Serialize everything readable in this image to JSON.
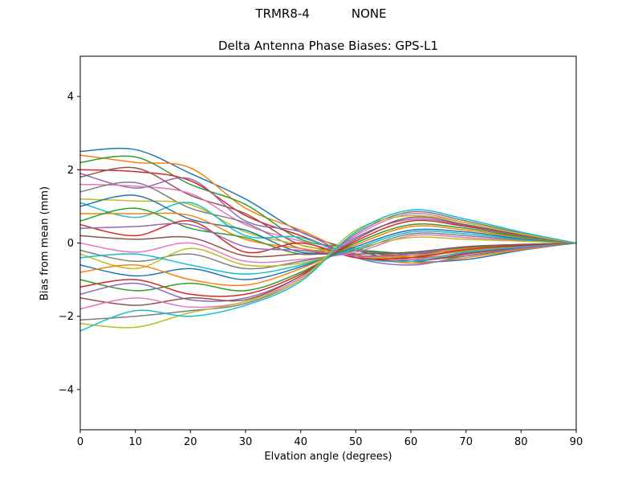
{
  "header": {
    "suptitle_left": "TRMR8-4",
    "suptitle_right": "NONE",
    "title": "Delta Antenna Phase Biases: GPS-L1"
  },
  "chart_data": {
    "type": "line",
    "title": "Delta Antenna Phase Biases: GPS-L1",
    "suptitle": "TRMR8-4         NONE",
    "xlabel": "Elvation angle (degrees)",
    "ylabel": "Bias from mean (mm)",
    "xlim": [
      0,
      90
    ],
    "ylim": [
      -5.1,
      5.1
    ],
    "xticks": [
      0,
      10,
      20,
      30,
      40,
      50,
      60,
      70,
      80,
      90
    ],
    "yticks": [
      -4,
      -2,
      0,
      2,
      4
    ],
    "grid": false,
    "legend": null,
    "background": "#ffffff",
    "spine_color": "#000000",
    "palette": [
      "#1f77b4",
      "#ff7f0e",
      "#2ca02c",
      "#d62728",
      "#9467bd",
      "#8c564b",
      "#e377c2",
      "#7f7f7f",
      "#bcbd22",
      "#17becf"
    ],
    "x": [
      0,
      10,
      20,
      30,
      40,
      50,
      60,
      70,
      80,
      90
    ],
    "series_values": [
      [
        2.5,
        2.55,
        1.9,
        1.2,
        0.3,
        -0.2,
        -0.5,
        -0.45,
        -0.2,
        0
      ],
      [
        2.4,
        2.2,
        2.05,
        0.95,
        0.35,
        -0.3,
        -0.55,
        -0.4,
        -0.18,
        0
      ],
      [
        2.2,
        2.35,
        1.6,
        1.05,
        0.1,
        -0.15,
        -0.45,
        -0.35,
        -0.15,
        0
      ],
      [
        2.0,
        1.95,
        1.7,
        0.75,
        0.2,
        -0.35,
        -0.5,
        -0.3,
        -0.12,
        0
      ],
      [
        1.9,
        1.5,
        1.75,
        0.6,
        0.3,
        -0.4,
        -0.6,
        -0.35,
        -0.14,
        0
      ],
      [
        1.8,
        2.05,
        1.3,
        0.8,
        -0.05,
        -0.2,
        -0.4,
        -0.28,
        -0.1,
        0
      ],
      [
        1.6,
        1.55,
        1.35,
        0.5,
        0.05,
        -0.35,
        -0.45,
        -0.25,
        -0.1,
        0
      ],
      [
        1.4,
        1.65,
        0.95,
        0.55,
        -0.15,
        -0.2,
        -0.35,
        -0.22,
        -0.08,
        0
      ],
      [
        1.2,
        1.15,
        1.05,
        0.3,
        -0.05,
        -0.35,
        -0.4,
        -0.2,
        -0.08,
        0
      ],
      [
        1.1,
        0.7,
        1.1,
        0.2,
        0.15,
        -0.4,
        -0.5,
        -0.25,
        -0.1,
        0
      ],
      [
        1.0,
        1.3,
        0.65,
        0.35,
        -0.25,
        -0.2,
        -0.3,
        -0.17,
        -0.06,
        0
      ],
      [
        0.8,
        0.8,
        0.75,
        0.1,
        -0.15,
        -0.35,
        -0.35,
        -0.15,
        -0.05,
        0
      ],
      [
        0.6,
        0.95,
        0.4,
        0.15,
        -0.3,
        -0.2,
        -0.28,
        -0.12,
        -0.05,
        0
      ],
      [
        0.5,
        0.2,
        0.6,
        -0.25,
        0.0,
        -0.4,
        -0.4,
        -0.18,
        -0.07,
        0
      ],
      [
        0.4,
        0.45,
        0.5,
        -0.1,
        -0.2,
        -0.35,
        -0.3,
        -0.1,
        -0.04,
        0
      ],
      [
        0.2,
        0.1,
        0.15,
        -0.35,
        -0.3,
        -0.3,
        -0.25,
        -0.1,
        -0.04,
        0
      ],
      [
        0.0,
        -0.25,
        0.0,
        -0.5,
        -0.45,
        -0.25,
        0.2,
        0.15,
        0.06,
        0
      ],
      [
        -0.2,
        -0.5,
        -0.3,
        -0.7,
        -0.5,
        -0.2,
        0.25,
        0.2,
        0.08,
        0
      ],
      [
        -0.3,
        -0.7,
        -0.15,
        -0.6,
        -0.55,
        -0.15,
        0.15,
        0.1,
        0.05,
        0
      ],
      [
        -0.4,
        -0.3,
        -0.6,
        -0.85,
        -0.6,
        -0.15,
        0.3,
        0.25,
        0.1,
        0
      ],
      [
        -0.6,
        -0.9,
        -0.7,
        -1.0,
        -0.65,
        -0.1,
        0.35,
        0.3,
        0.12,
        0
      ],
      [
        -0.8,
        -0.6,
        -1.0,
        -1.15,
        -0.7,
        -0.05,
        0.45,
        0.35,
        0.15,
        0
      ],
      [
        -1.0,
        -1.3,
        -1.1,
        -1.3,
        -0.8,
        0.0,
        0.5,
        0.4,
        0.17,
        0
      ],
      [
        -1.2,
        -1.0,
        -1.4,
        -1.4,
        -0.85,
        0.05,
        0.6,
        0.45,
        0.2,
        0
      ],
      [
        -1.4,
        -1.1,
        -1.55,
        -1.5,
        -0.9,
        0.15,
        0.65,
        0.48,
        0.2,
        0
      ],
      [
        -1.5,
        -1.7,
        -1.5,
        -1.55,
        -0.9,
        0.1,
        0.7,
        0.5,
        0.22,
        0
      ],
      [
        -1.8,
        -1.5,
        -1.75,
        -1.6,
        -0.95,
        0.2,
        0.8,
        0.55,
        0.25,
        0
      ],
      [
        -2.1,
        -2.0,
        -1.85,
        -1.65,
        -1.0,
        0.25,
        0.85,
        0.6,
        0.27,
        0
      ],
      [
        -2.2,
        -2.3,
        -1.9,
        -1.6,
        -1.0,
        0.35,
        0.75,
        0.55,
        0.25,
        0
      ],
      [
        -2.4,
        -1.85,
        -2.0,
        -1.7,
        -1.05,
        0.3,
        0.9,
        0.65,
        0.3,
        0
      ]
    ]
  }
}
